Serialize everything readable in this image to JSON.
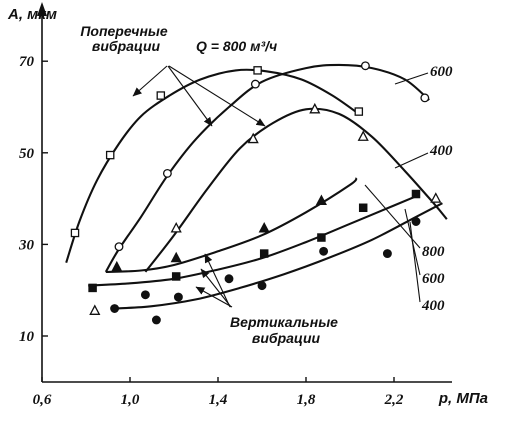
{
  "chart_data": {
    "type": "scatter",
    "title": "",
    "xlabel": "p, МПа",
    "ylabel": "A, мкм",
    "xlim": [
      0.6,
      2.5
    ],
    "ylim": [
      5,
      75
    ],
    "xticks": [
      "0,6",
      "1,0",
      "1,4",
      "1,8",
      "2,2"
    ],
    "xtick_values": [
      0.6,
      1.0,
      1.4,
      1.8,
      2.2
    ],
    "yticks": [
      "10",
      "30",
      "50",
      "70"
    ],
    "ytick_values": [
      10,
      30,
      50,
      70
    ],
    "annotations": {
      "q_label": "Q = 800 м³/ч",
      "transverse_1": "Поперечные",
      "transverse_2": "вибрации",
      "vertical_1": "Вертикальные",
      "vertical_2": "вибрации"
    },
    "series": [
      {
        "name": "600",
        "group": "transverse",
        "marker": "circle-open",
        "points": [
          [
            0.95,
            29.5
          ],
          [
            1.17,
            45.5
          ],
          [
            1.57,
            65
          ],
          [
            2.07,
            69
          ],
          [
            2.34,
            62
          ]
        ],
        "curve": [
          [
            0.89,
            24
          ],
          [
            0.95,
            29
          ],
          [
            1.05,
            36
          ],
          [
            1.17,
            45
          ],
          [
            1.3,
            53
          ],
          [
            1.45,
            60
          ],
          [
            1.6,
            65.5
          ],
          [
            1.8,
            68.5
          ],
          [
            1.95,
            69.2
          ],
          [
            2.1,
            68.5
          ],
          [
            2.25,
            66
          ],
          [
            2.36,
            61.5
          ]
        ]
      },
      {
        "name": "800",
        "group": "transverse",
        "marker": "square-open",
        "points": [
          [
            0.75,
            32.5
          ],
          [
            0.91,
            49.5
          ],
          [
            1.14,
            62.5
          ],
          [
            1.58,
            68
          ],
          [
            2.04,
            59
          ]
        ],
        "curve": [
          [
            0.71,
            26
          ],
          [
            0.77,
            35
          ],
          [
            0.85,
            44
          ],
          [
            0.95,
            52
          ],
          [
            1.05,
            58
          ],
          [
            1.18,
            62.5
          ],
          [
            1.32,
            66
          ],
          [
            1.48,
            68
          ],
          [
            1.62,
            67.8
          ],
          [
            1.78,
            66
          ],
          [
            1.92,
            62.5
          ],
          [
            2.04,
            58.5
          ]
        ]
      },
      {
        "name": "400",
        "group": "transverse",
        "marker": "triangle-open",
        "points": [
          [
            0.84,
            15.5
          ],
          [
            1.21,
            33.5
          ],
          [
            1.56,
            53
          ],
          [
            1.84,
            59.5
          ],
          [
            2.06,
            53.5
          ],
          [
            2.39,
            40
          ]
        ],
        "curve": [
          [
            1.07,
            24
          ],
          [
            1.2,
            32
          ],
          [
            1.35,
            42
          ],
          [
            1.5,
            51
          ],
          [
            1.65,
            56.5
          ],
          [
            1.8,
            59.5
          ],
          [
            1.95,
            58.5
          ],
          [
            2.1,
            53.5
          ],
          [
            2.25,
            46
          ],
          [
            2.38,
            39
          ],
          [
            2.44,
            35.5
          ]
        ]
      },
      {
        "name": "800",
        "group": "vertical",
        "marker": "triangle-filled",
        "points": [
          [
            0.94,
            25
          ],
          [
            1.21,
            27
          ],
          [
            1.61,
            33.5
          ],
          [
            1.87,
            39.5
          ]
        ],
        "curve": [
          [
            0.89,
            24
          ],
          [
            1.05,
            24.3
          ],
          [
            1.2,
            25.5
          ],
          [
            1.4,
            28.5
          ],
          [
            1.6,
            32
          ],
          [
            1.8,
            37
          ],
          [
            2.0,
            43
          ],
          [
            2.03,
            44.5
          ]
        ]
      },
      {
        "name": "600",
        "group": "vertical",
        "marker": "square-filled",
        "points": [
          [
            0.83,
            20.5
          ],
          [
            1.21,
            23
          ],
          [
            1.61,
            28
          ],
          [
            1.87,
            31.5
          ],
          [
            2.06,
            38
          ],
          [
            2.3,
            41
          ]
        ],
        "curve": [
          [
            0.81,
            21
          ],
          [
            1.0,
            21.5
          ],
          [
            1.2,
            22.5
          ],
          [
            1.4,
            24.5
          ],
          [
            1.6,
            27
          ],
          [
            1.8,
            30.5
          ],
          [
            2.0,
            34.5
          ],
          [
            2.2,
            38.5
          ],
          [
            2.3,
            40.5
          ]
        ]
      },
      {
        "name": "400",
        "group": "vertical",
        "marker": "circle-filled",
        "points": [
          [
            0.93,
            16
          ],
          [
            1.07,
            19
          ],
          [
            1.12,
            13.5
          ],
          [
            1.22,
            18.5
          ],
          [
            1.45,
            22.5
          ],
          [
            1.6,
            21
          ],
          [
            1.88,
            28.5
          ],
          [
            2.17,
            28
          ],
          [
            2.3,
            35
          ]
        ],
        "curve": [
          [
            0.93,
            16
          ],
          [
            1.1,
            16.5
          ],
          [
            1.3,
            18
          ],
          [
            1.5,
            20.5
          ],
          [
            1.7,
            23.5
          ],
          [
            1.9,
            27
          ],
          [
            2.1,
            31
          ],
          [
            2.3,
            36
          ],
          [
            2.42,
            39
          ]
        ]
      }
    ]
  }
}
